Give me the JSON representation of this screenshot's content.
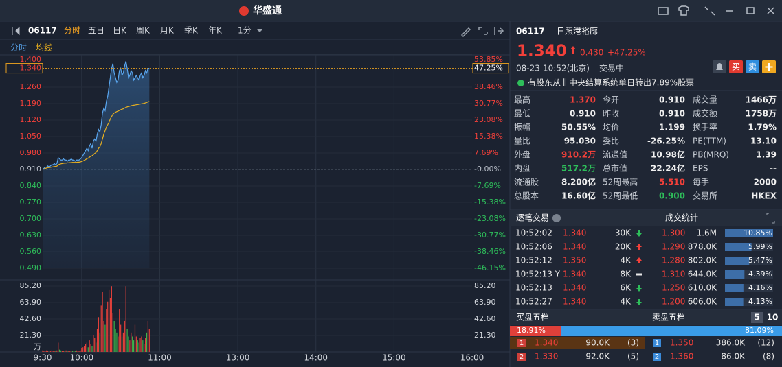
{
  "title_bar": {
    "logo": "华盛通"
  },
  "toolbar": {
    "code": "06117",
    "tabs": [
      "分时",
      "五日",
      "日K",
      "周K",
      "月K",
      "季K",
      "年K",
      "1分"
    ]
  },
  "chart_data": {
    "type": "line",
    "xlim": [
      0,
      330
    ],
    "xticks": [
      {
        "value": 0,
        "label": "9:30"
      },
      {
        "value": 30,
        "label": "10:00"
      },
      {
        "value": 90,
        "label": "11:00"
      },
      {
        "value": 150,
        "label": "13:00"
      },
      {
        "value": 210,
        "label": "14:00"
      },
      {
        "value": 270,
        "label": "15:00"
      },
      {
        "value": 330,
        "label": "16:00"
      }
    ],
    "ylim": [
      0.49,
      1.4
    ],
    "yticks": [
      {
        "value": 1.4,
        "label": "1.400"
      },
      {
        "value": 1.26,
        "label": "1.260"
      },
      {
        "value": 1.19,
        "label": "1.190"
      },
      {
        "value": 1.12,
        "label": "1.120"
      },
      {
        "value": 1.05,
        "label": "1.050"
      },
      {
        "value": 0.98,
        "label": "0.980"
      },
      {
        "value": 0.91,
        "label": "0.910"
      },
      {
        "value": 0.84,
        "label": "0.840"
      },
      {
        "value": 0.77,
        "label": "0.770"
      },
      {
        "value": 0.7,
        "label": "0.700"
      },
      {
        "value": 0.63,
        "label": "0.630"
      },
      {
        "value": 0.56,
        "label": "0.560"
      },
      {
        "value": 0.49,
        "label": "0.490"
      }
    ],
    "y2lim": [
      -46.15,
      53.85
    ],
    "y2ticks": [
      {
        "value": 53.85,
        "label": "53.85%"
      },
      {
        "value": 38.46,
        "label": "38.46%"
      },
      {
        "value": 30.77,
        "label": "30.77%"
      },
      {
        "value": 23.08,
        "label": "23.08%"
      },
      {
        "value": 15.38,
        "label": "15.38%"
      },
      {
        "value": 7.69,
        "label": "7.69%"
      },
      {
        "value": 0,
        "label": "-0.00%"
      },
      {
        "value": -7.69,
        "label": "-7.69%"
      },
      {
        "value": -15.38,
        "label": "-15.38%"
      },
      {
        "value": -23.08,
        "label": "-23.08%"
      },
      {
        "value": -30.77,
        "label": "-30.77%"
      },
      {
        "value": -38.46,
        "label": "-38.46%"
      },
      {
        "value": -46.15,
        "label": "-46.15%"
      }
    ],
    "last_label": "1.340",
    "last_pct": "47.25%",
    "series": [
      {
        "name": "分时",
        "color": "#5aa7f0",
        "values": [
          0.91,
          0.915,
          0.92,
          0.92,
          0.925,
          0.92,
          0.925,
          0.93,
          0.93,
          0.935,
          0.93,
          0.935,
          0.96,
          0.955,
          0.95,
          0.95,
          0.955,
          0.95,
          0.95,
          0.945,
          0.95,
          0.95,
          0.955,
          0.95,
          0.95,
          0.945,
          0.95,
          0.95,
          0.95,
          0.955,
          0.96,
          0.97,
          0.98,
          0.99,
          1.0,
          0.99,
          1.01,
          1.02,
          1.0,
          1.03,
          1.04,
          1.03,
          1.06,
          1.08,
          1.07,
          1.1,
          1.15,
          1.17,
          1.16,
          1.2,
          1.22,
          1.26,
          1.3,
          1.34,
          1.36,
          1.32,
          1.3,
          1.28,
          1.29,
          1.33,
          1.34,
          1.31,
          1.32,
          1.35,
          1.37,
          1.34,
          1.3,
          1.31,
          1.33,
          1.32,
          1.29,
          1.3,
          1.31,
          1.3,
          1.29,
          1.31,
          1.32,
          1.3,
          1.31,
          1.33,
          1.32,
          1.34,
          1.34
        ]
      },
      {
        "name": "均线",
        "color": "#e8b020",
        "values": [
          0.91,
          0.912,
          0.914,
          0.916,
          0.918,
          0.918,
          0.919,
          0.92,
          0.921,
          0.922,
          0.923,
          0.924,
          0.93,
          0.932,
          0.934,
          0.935,
          0.936,
          0.937,
          0.937,
          0.938,
          0.938,
          0.939,
          0.939,
          0.94,
          0.94,
          0.94,
          0.94,
          0.941,
          0.941,
          0.942,
          0.944,
          0.946,
          0.949,
          0.952,
          0.956,
          0.958,
          0.962,
          0.966,
          0.968,
          0.973,
          0.978,
          0.982,
          0.99,
          1.0,
          1.006,
          1.02,
          1.04,
          1.06,
          1.075,
          1.09,
          1.1,
          1.11,
          1.125,
          1.135,
          1.145,
          1.15,
          1.153,
          1.156,
          1.158,
          1.161,
          1.164,
          1.166,
          1.168,
          1.171,
          1.174,
          1.176,
          1.178,
          1.179,
          1.181,
          1.182,
          1.183,
          1.184,
          1.185,
          1.186,
          1.187,
          1.188,
          1.189,
          1.19,
          1.191,
          1.193,
          1.195,
          1.197,
          1.199
        ]
      }
    ],
    "volume": {
      "ylim": [
        0,
        85.2
      ],
      "yticks": [
        {
          "value": 85.2,
          "label": "85.20"
        },
        {
          "value": 63.9,
          "label": "63.90"
        },
        {
          "value": 42.6,
          "label": "42.60"
        },
        {
          "value": 21.3,
          "label": "21.30"
        }
      ],
      "unit": "万",
      "up_color": "#e0403a",
      "down_color": "#3cb44b",
      "values": [
        2,
        1,
        1,
        2,
        1,
        1,
        1,
        2,
        1,
        1,
        1,
        2,
        12,
        3,
        2,
        1,
        1,
        1,
        2,
        1,
        1,
        1,
        1,
        1,
        1,
        1,
        2,
        1,
        1,
        2,
        5,
        6,
        8,
        10,
        12,
        6,
        15,
        10,
        8,
        22,
        18,
        12,
        30,
        45,
        25,
        60,
        78,
        40,
        35,
        55,
        65,
        80,
        70,
        85,
        50,
        40,
        30,
        25,
        20,
        55,
        35,
        20,
        25,
        40,
        85,
        30,
        20,
        15,
        25,
        20,
        15,
        35,
        20,
        15,
        12,
        18,
        20,
        15,
        10,
        18,
        25,
        40,
        30
      ]
    }
  },
  "quote": {
    "code": "06117",
    "name": "日照港裕廊",
    "price": "1.340",
    "change": "0.430",
    "pct": "+47.25%",
    "date": "08-23",
    "time": "10:52(北京)",
    "status": "交易中",
    "buy": "买",
    "sell": "卖",
    "notice": "有股东从非中央结算系统单日转出7.89%股票"
  },
  "stats": {
    "rows": [
      [
        [
          "最高",
          "1.370"
        ],
        [
          "今开",
          "0.910"
        ],
        [
          "成交量",
          "1466万"
        ]
      ],
      [
        [
          "最低",
          "0.910"
        ],
        [
          "昨收",
          "0.910"
        ],
        [
          "成交额",
          "1758万"
        ]
      ],
      [
        [
          "振幅",
          "50.55%"
        ],
        [
          "均价",
          "1.199"
        ],
        [
          "换手率",
          "1.79%"
        ]
      ],
      [
        [
          "量比",
          "95.030"
        ],
        [
          "委比",
          "-26.25%"
        ],
        [
          "PE(TTM)",
          "13.10"
        ]
      ],
      [
        [
          "外盘",
          "910.2万"
        ],
        [
          "流通值",
          "10.98亿"
        ],
        [
          "PB(MRQ)",
          "1.39"
        ]
      ],
      [
        [
          "内盘",
          "517.2万"
        ],
        [
          "总市值",
          "22.24亿"
        ],
        [
          "EPS",
          "--"
        ]
      ],
      [
        [
          "流通股",
          "8.200亿"
        ],
        [
          "52周最高",
          "5.510"
        ],
        [
          "每手",
          "2000"
        ]
      ],
      [
        [
          "总股本",
          "16.60亿"
        ],
        [
          "52周最低",
          "0.900"
        ],
        [
          "交易所",
          "HKEX"
        ]
      ]
    ]
  },
  "trades": {
    "title": "逐笔交易",
    "stats_title": "成交统计",
    "rows": [
      [
        "10:52:02",
        "1.340",
        "30K"
      ],
      [
        "10:52:06",
        "1.340",
        "20K"
      ],
      [
        "10:52:12",
        "1.350",
        "4K"
      ],
      [
        "10:52:13 Y",
        "1.340",
        "8K"
      ],
      [
        "10:52:13",
        "1.340",
        "6K"
      ],
      [
        "10:52:27",
        "1.340",
        "4K"
      ]
    ],
    "stat_rows": [
      [
        "1.300",
        "1.6M"
      ],
      [
        "1.290",
        "878.0K"
      ],
      [
        "1.280",
        "802.0K"
      ],
      [
        "1.310",
        "644.0K"
      ],
      [
        "1.250",
        "610.0K"
      ],
      [
        "1.200",
        "606.0K"
      ]
    ],
    "stat_pct": [
      {
        "value": 10.85,
        "label": "10.85%"
      },
      {
        "value": 5.99,
        "label": "5.99%"
      },
      {
        "value": 5.47,
        "label": "5.47%"
      },
      {
        "value": 4.39,
        "label": "4.39%"
      },
      {
        "value": 4.16,
        "label": "4.16%"
      },
      {
        "value": 4.13,
        "label": "4.13%"
      }
    ]
  },
  "book": {
    "bid_title": "买盘五档",
    "ask_title": "卖盘五档",
    "levels": [
      "5",
      "10"
    ],
    "ratio": [
      {
        "value": 18.91,
        "label": "18.91%"
      },
      {
        "value": 81.09,
        "label": "81.09%"
      }
    ],
    "bids": [
      [
        "1",
        "1.340",
        "90.0K",
        "(3)"
      ],
      [
        "2",
        "1.330",
        "92.0K",
        "(5)"
      ]
    ],
    "asks": [
      [
        "1",
        "1.350",
        "386.0K",
        "(12)"
      ],
      [
        "2",
        "1.360",
        "86.0K",
        "(8)"
      ]
    ]
  }
}
